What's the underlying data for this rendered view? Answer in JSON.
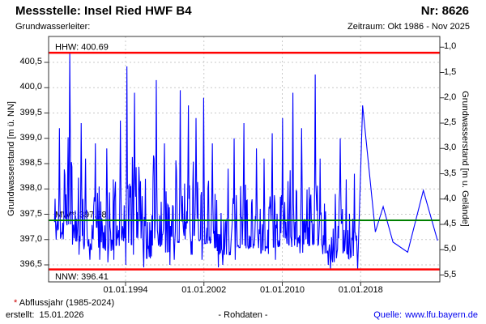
{
  "header": {
    "title": "Messstelle: Insel Ried HWF B4",
    "number_label": "Nr: 8626",
    "aquifer_label": "Grundwasserleiter:",
    "period_label": "Zeitraum: Okt 1986 - Nov 2025"
  },
  "footer": {
    "footnote_star": "*",
    "footnote_text": "Abflussjahr (1985-2024)",
    "created_label": "erstellt:",
    "created_date": "15.01.2026",
    "center_label": "- Rohdaten -",
    "source_label": "Quelle:",
    "source_url": "www.lfu.bayern.de"
  },
  "colors": {
    "series": "#0000ff",
    "extreme_line": "#ff0000",
    "mean_line": "#008000",
    "grid": "#c8c8c8",
    "frame": "#333333",
    "source_link": "#0000ee",
    "footnote_star": "#cc0000"
  },
  "chart_data": {
    "type": "line",
    "title": "Messstelle: Insel Ried HWF B4 / Nr: 8626",
    "ylabel_left": "Grundwasserstand [m ü. NN]",
    "ylabel_right": "Grundwasserstand [m u. Gelände]",
    "x_range_years": [
      1986.15,
      2026.1
    ],
    "y_left_range": [
      396.16,
      401.01
    ],
    "ground_level_m_nn": 401.8,
    "grid": true,
    "x_ticks": [
      {
        "year": 1994,
        "label": "01.01.1994"
      },
      {
        "year": 2002,
        "label": "01.01.2002"
      },
      {
        "year": 2010,
        "label": "01.01.2010"
      },
      {
        "year": 2018,
        "label": "01.01.2018"
      }
    ],
    "y_left_ticks": [
      {
        "value": 400.5,
        "label": "400,5"
      },
      {
        "value": 400.0,
        "label": "400,0"
      },
      {
        "value": 399.5,
        "label": "399,5"
      },
      {
        "value": 399.0,
        "label": "399,0"
      },
      {
        "value": 398.5,
        "label": "398,5"
      },
      {
        "value": 398.0,
        "label": "398,0"
      },
      {
        "value": 397.5,
        "label": "397,5"
      },
      {
        "value": 397.0,
        "label": "397,0"
      },
      {
        "value": 396.5,
        "label": "396,5"
      }
    ],
    "y_right_ticks": [
      {
        "depth": 1.0,
        "label": "1,0"
      },
      {
        "depth": 1.5,
        "label": "1,5"
      },
      {
        "depth": 2.0,
        "label": "2,0"
      },
      {
        "depth": 2.5,
        "label": "2,5"
      },
      {
        "depth": 3.0,
        "label": "3,0"
      },
      {
        "depth": 3.5,
        "label": "3,5"
      },
      {
        "depth": 4.0,
        "label": "4,0"
      },
      {
        "depth": 4.5,
        "label": "4,5"
      },
      {
        "depth": 5.0,
        "label": "5,0"
      },
      {
        "depth": 5.5,
        "label": "5,5"
      }
    ],
    "reference_lines": [
      {
        "name": "HHW",
        "label": "HHW: 400.69",
        "value": 400.69,
        "color": "#ff0000",
        "width": 2.5,
        "label_pos": "above"
      },
      {
        "name": "MW",
        "label": "MW*: 397.38",
        "value": 397.38,
        "color": "#008000",
        "width": 2,
        "label_pos": "above"
      },
      {
        "name": "NNW",
        "label": "NNW: 396.41",
        "value": 396.41,
        "color": "#ff0000",
        "width": 2.5,
        "label_pos": "below"
      }
    ],
    "series_name": "Grundwasserstand Rohdaten",
    "series_color": "#0000ff",
    "dense_years_min_max": [
      [
        1987,
        396.75,
        399.2
      ],
      [
        1988,
        396.9,
        400.69
      ],
      [
        1989,
        396.7,
        399.3
      ],
      [
        1990,
        396.6,
        398.6
      ],
      [
        1991,
        396.6,
        398.9
      ],
      [
        1992,
        396.55,
        398.8
      ],
      [
        1993,
        396.6,
        399.35
      ],
      [
        1994,
        396.5,
        400.42
      ],
      [
        1995,
        396.7,
        399.9
      ],
      [
        1996,
        396.45,
        398.2
      ],
      [
        1997,
        396.5,
        400.15
      ],
      [
        1998,
        396.5,
        398.9
      ],
      [
        1999,
        396.6,
        399.95
      ],
      [
        2000,
        396.7,
        399.65
      ],
      [
        2001,
        396.7,
        399.4
      ],
      [
        2002,
        396.6,
        399.8
      ],
      [
        2003,
        396.45,
        398.9
      ],
      [
        2004,
        396.5,
        398.4
      ],
      [
        2005,
        396.6,
        399.0
      ],
      [
        2006,
        396.55,
        399.3
      ],
      [
        2007,
        396.6,
        398.8
      ],
      [
        2008,
        396.5,
        398.6
      ],
      [
        2009,
        396.6,
        399.1
      ],
      [
        2010,
        396.6,
        399.4
      ],
      [
        2011,
        396.5,
        399.9
      ],
      [
        2012,
        396.45,
        399.2
      ],
      [
        2013,
        396.5,
        400.26
      ],
      [
        2014,
        396.5,
        398.6
      ],
      [
        2015,
        396.4,
        397.9
      ],
      [
        2016,
        396.45,
        399.0
      ],
      [
        2017,
        396.42,
        398.3
      ]
    ],
    "sparse_points": [
      [
        2018.2,
        399.65
      ],
      [
        2019.5,
        397.15
      ],
      [
        2020.3,
        397.65
      ],
      [
        2021.3,
        396.95
      ],
      [
        2022.8,
        396.75
      ],
      [
        2024.4,
        397.97
      ],
      [
        2025.85,
        396.98
      ]
    ],
    "seed": 11
  }
}
